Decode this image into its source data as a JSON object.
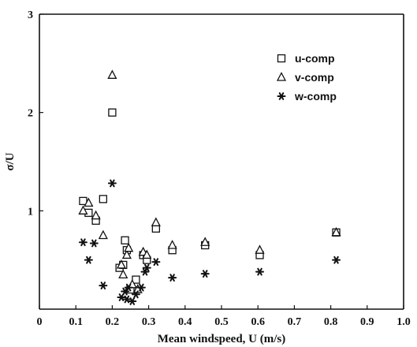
{
  "chart_data": {
    "type": "scatter",
    "xlabel": "Mean windspeed, U (m/s)",
    "ylabel": "σ/U",
    "xlim": [
      0,
      1.0
    ],
    "ylim": [
      0,
      3
    ],
    "x_ticks": [
      0,
      0.1,
      0.2,
      0.3,
      0.4,
      0.5,
      0.6,
      0.7,
      0.8,
      0.9,
      1.0
    ],
    "x_tick_labels": [
      "0",
      "0.1",
      "0.2",
      "0.3",
      "0.4",
      "0.5",
      "0.6",
      "0.7",
      "0.8",
      "0.9",
      "1.0"
    ],
    "y_ticks": [
      1,
      2,
      3
    ],
    "y_tick_labels": [
      "1",
      "2",
      "3"
    ],
    "grid": false,
    "legend_position": "top-right",
    "series": [
      {
        "name": "u-comp",
        "marker": "square",
        "points": [
          [
            0.12,
            1.1
          ],
          [
            0.135,
            0.98
          ],
          [
            0.155,
            0.9
          ],
          [
            0.175,
            1.12
          ],
          [
            0.2,
            2.0
          ],
          [
            0.22,
            0.42
          ],
          [
            0.23,
            0.45
          ],
          [
            0.235,
            0.7
          ],
          [
            0.24,
            0.6
          ],
          [
            0.25,
            0.2
          ],
          [
            0.265,
            0.3
          ],
          [
            0.285,
            0.55
          ],
          [
            0.295,
            0.5
          ],
          [
            0.32,
            0.82
          ],
          [
            0.365,
            0.6
          ],
          [
            0.455,
            0.65
          ],
          [
            0.605,
            0.55
          ],
          [
            0.815,
            0.78
          ]
        ]
      },
      {
        "name": "v-comp",
        "marker": "triangle",
        "points": [
          [
            0.12,
            1.0
          ],
          [
            0.135,
            1.08
          ],
          [
            0.155,
            0.95
          ],
          [
            0.175,
            0.75
          ],
          [
            0.2,
            2.38
          ],
          [
            0.225,
            0.45
          ],
          [
            0.23,
            0.35
          ],
          [
            0.24,
            0.55
          ],
          [
            0.245,
            0.62
          ],
          [
            0.255,
            0.25
          ],
          [
            0.27,
            0.2
          ],
          [
            0.285,
            0.58
          ],
          [
            0.295,
            0.55
          ],
          [
            0.32,
            0.88
          ],
          [
            0.365,
            0.65
          ],
          [
            0.455,
            0.68
          ],
          [
            0.605,
            0.6
          ],
          [
            0.815,
            0.78
          ]
        ]
      },
      {
        "name": "w-comp",
        "marker": "star",
        "points": [
          [
            0.12,
            0.68
          ],
          [
            0.135,
            0.5
          ],
          [
            0.15,
            0.67
          ],
          [
            0.175,
            0.24
          ],
          [
            0.2,
            1.28
          ],
          [
            0.225,
            0.12
          ],
          [
            0.235,
            0.18
          ],
          [
            0.24,
            0.1
          ],
          [
            0.245,
            0.22
          ],
          [
            0.255,
            0.08
          ],
          [
            0.265,
            0.15
          ],
          [
            0.28,
            0.22
          ],
          [
            0.29,
            0.38
          ],
          [
            0.295,
            0.42
          ],
          [
            0.32,
            0.48
          ],
          [
            0.365,
            0.32
          ],
          [
            0.455,
            0.36
          ],
          [
            0.605,
            0.38
          ],
          [
            0.815,
            0.5
          ]
        ]
      }
    ]
  }
}
